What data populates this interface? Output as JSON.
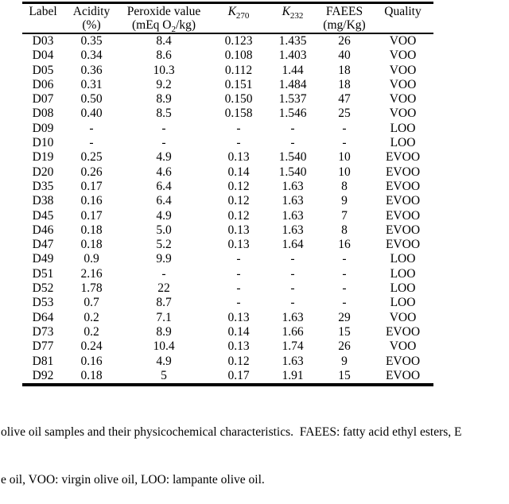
{
  "table": {
    "columns": [
      {
        "id": "label",
        "title": "Label",
        "sub": ""
      },
      {
        "id": "acidity",
        "title": "Acidity",
        "sub": "(%)"
      },
      {
        "id": "peroxide",
        "title": "Peroxide value",
        "sub_pre": "(mEq O",
        "sub_sub": "2",
        "sub_post": "/kg)"
      },
      {
        "id": "k270",
        "title": "K",
        "title_sub": "270",
        "sub": ""
      },
      {
        "id": "k232",
        "title": "K",
        "title_sub": "232",
        "sub": ""
      },
      {
        "id": "faees",
        "title": "FAEES",
        "sub": "(mg/Kg)"
      },
      {
        "id": "quality",
        "title": "Quality",
        "sub": ""
      }
    ],
    "rows": [
      [
        "D03",
        "0.35",
        "8.4",
        "0.123",
        "1.435",
        "26",
        "VOO"
      ],
      [
        "D04",
        "0.34",
        "8.6",
        "0.108",
        "1.403",
        "40",
        "VOO"
      ],
      [
        "D05",
        "0.36",
        "10.3",
        "0.112",
        "1.44",
        "18",
        "VOO"
      ],
      [
        "D06",
        "0.31",
        "9.2",
        "0.151",
        "1.484",
        "18",
        "VOO"
      ],
      [
        "D07",
        "0.50",
        "8.9",
        "0.150",
        "1.537",
        "47",
        "VOO"
      ],
      [
        "D08",
        "0.40",
        "8.5",
        "0.158",
        "1.546",
        "25",
        "VOO"
      ],
      [
        "D09",
        "-",
        "-",
        "-",
        "-",
        "-",
        "LOO"
      ],
      [
        "D10",
        "-",
        "-",
        "-",
        "-",
        "-",
        "LOO"
      ],
      [
        "D19",
        "0.25",
        "4.9",
        "0.13",
        "1.540",
        "10",
        "EVOO"
      ],
      [
        "D20",
        "0.26",
        "4.6",
        "0.14",
        "1.540",
        "10",
        "EVOO"
      ],
      [
        "D35",
        "0.17",
        "6.4",
        "0.12",
        "1.63",
        "8",
        "EVOO"
      ],
      [
        "D38",
        "0.16",
        "6.4",
        "0.12",
        "1.63",
        "9",
        "EVOO"
      ],
      [
        "D45",
        "0.17",
        "4.9",
        "0.12",
        "1.63",
        "7",
        "EVOO"
      ],
      [
        "D46",
        "0.18",
        "5.0",
        "0.13",
        "1.63",
        "8",
        "EVOO"
      ],
      [
        "D47",
        "0.18",
        "5.2",
        "0.13",
        "1.64",
        "16",
        "EVOO"
      ],
      [
        "D49",
        "0.9",
        "9.9",
        "-",
        "-",
        "-",
        "LOO"
      ],
      [
        "D51",
        "2.16",
        "-",
        "-",
        "-",
        "-",
        "LOO"
      ],
      [
        "D52",
        "1.78",
        "22",
        "-",
        "-",
        "-",
        "LOO"
      ],
      [
        "D53",
        "0.7",
        "8.7",
        "-",
        "-",
        "-",
        "LOO"
      ],
      [
        "D64",
        "0.2",
        "7.1",
        "0.13",
        "1.63",
        "29",
        "VOO"
      ],
      [
        "D73",
        "0.2",
        "8.9",
        "0.14",
        "1.66",
        "15",
        "EVOO"
      ],
      [
        "D77",
        "0.24",
        "10.4",
        "0.13",
        "1.74",
        "26",
        "VOO"
      ],
      [
        "D81",
        "0.16",
        "4.9",
        "0.12",
        "1.63",
        "9",
        "EVOO"
      ],
      [
        "D92",
        "0.18",
        "5",
        "0.17",
        "1.91",
        "15",
        "EVOO"
      ]
    ]
  },
  "caption": {
    "line1": "olive oil samples and their physicochemical characteristics.  FAEES: fatty acid ethyl esters, E",
    "line2": "e oil, VOO: virgin olive oil, LOO: lampante olive oil."
  }
}
